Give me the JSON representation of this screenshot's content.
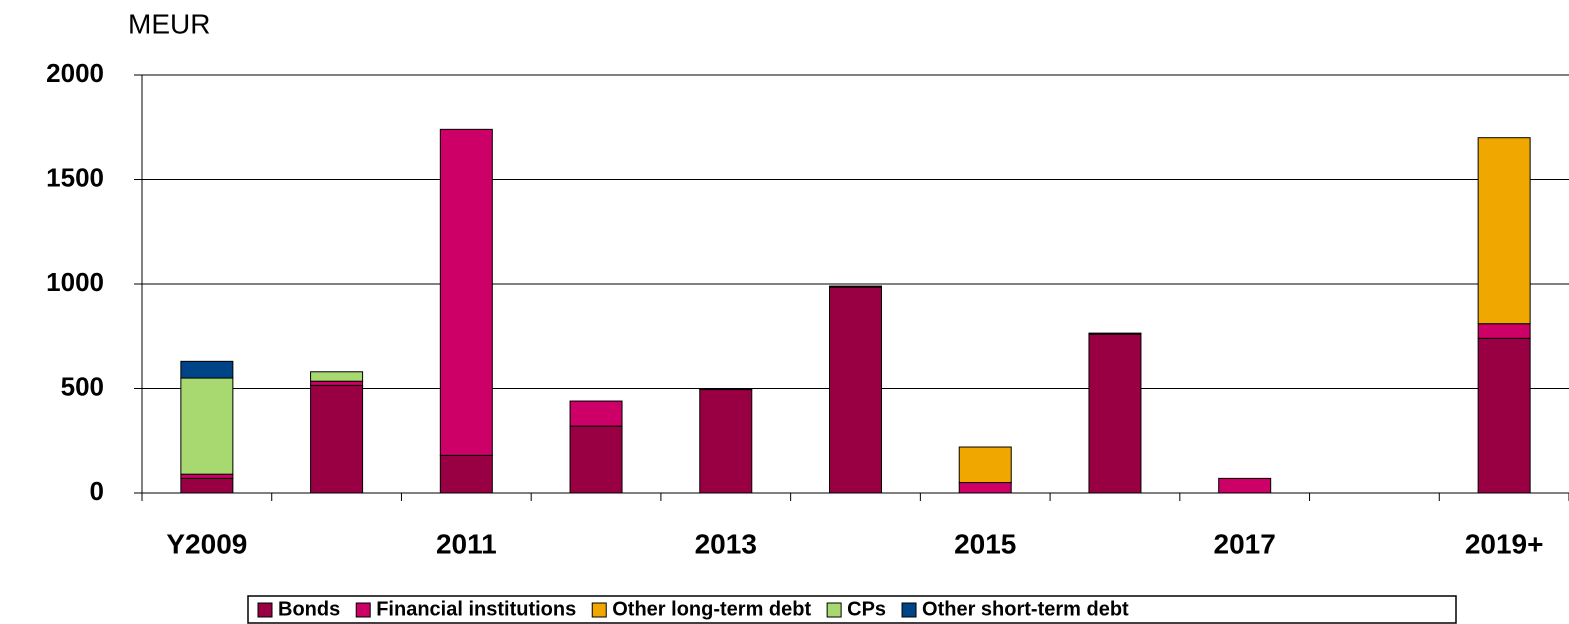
{
  "chart_data": {
    "type": "stacked_bar",
    "y_label": "MEUR",
    "categories": [
      "Y2009",
      null,
      "2011",
      null,
      "2013",
      null,
      "2015",
      null,
      "2017",
      null,
      "2019+"
    ],
    "series": [
      {
        "name": "Bonds",
        "color": "#990044",
        "values": [
          70,
          515,
          180,
          320,
          495,
          985,
          0,
          760,
          0,
          0,
          740
        ]
      },
      {
        "name": "Financial institutions",
        "color": "#cc0066",
        "values": [
          20,
          20,
          1560,
          120,
          5,
          5,
          50,
          5,
          70,
          0,
          70
        ]
      },
      {
        "name": "Other long-term debt",
        "color": "#f0a800",
        "values": [
          0,
          0,
          0,
          0,
          0,
          0,
          170,
          0,
          0,
          0,
          890
        ]
      },
      {
        "name": "CPs",
        "color": "#a8d870",
        "values": [
          460,
          45,
          0,
          0,
          0,
          0,
          0,
          0,
          0,
          0,
          0
        ]
      },
      {
        "name": "Other short-term debt",
        "color": "#004488",
        "values": [
          80,
          0,
          0,
          0,
          0,
          0,
          0,
          0,
          0,
          0,
          0
        ]
      }
    ],
    "ylim": [
      0,
      2000
    ],
    "yticks": [
      0,
      500,
      1000,
      1500,
      2000
    ],
    "grid": true,
    "legend": "bottom"
  }
}
